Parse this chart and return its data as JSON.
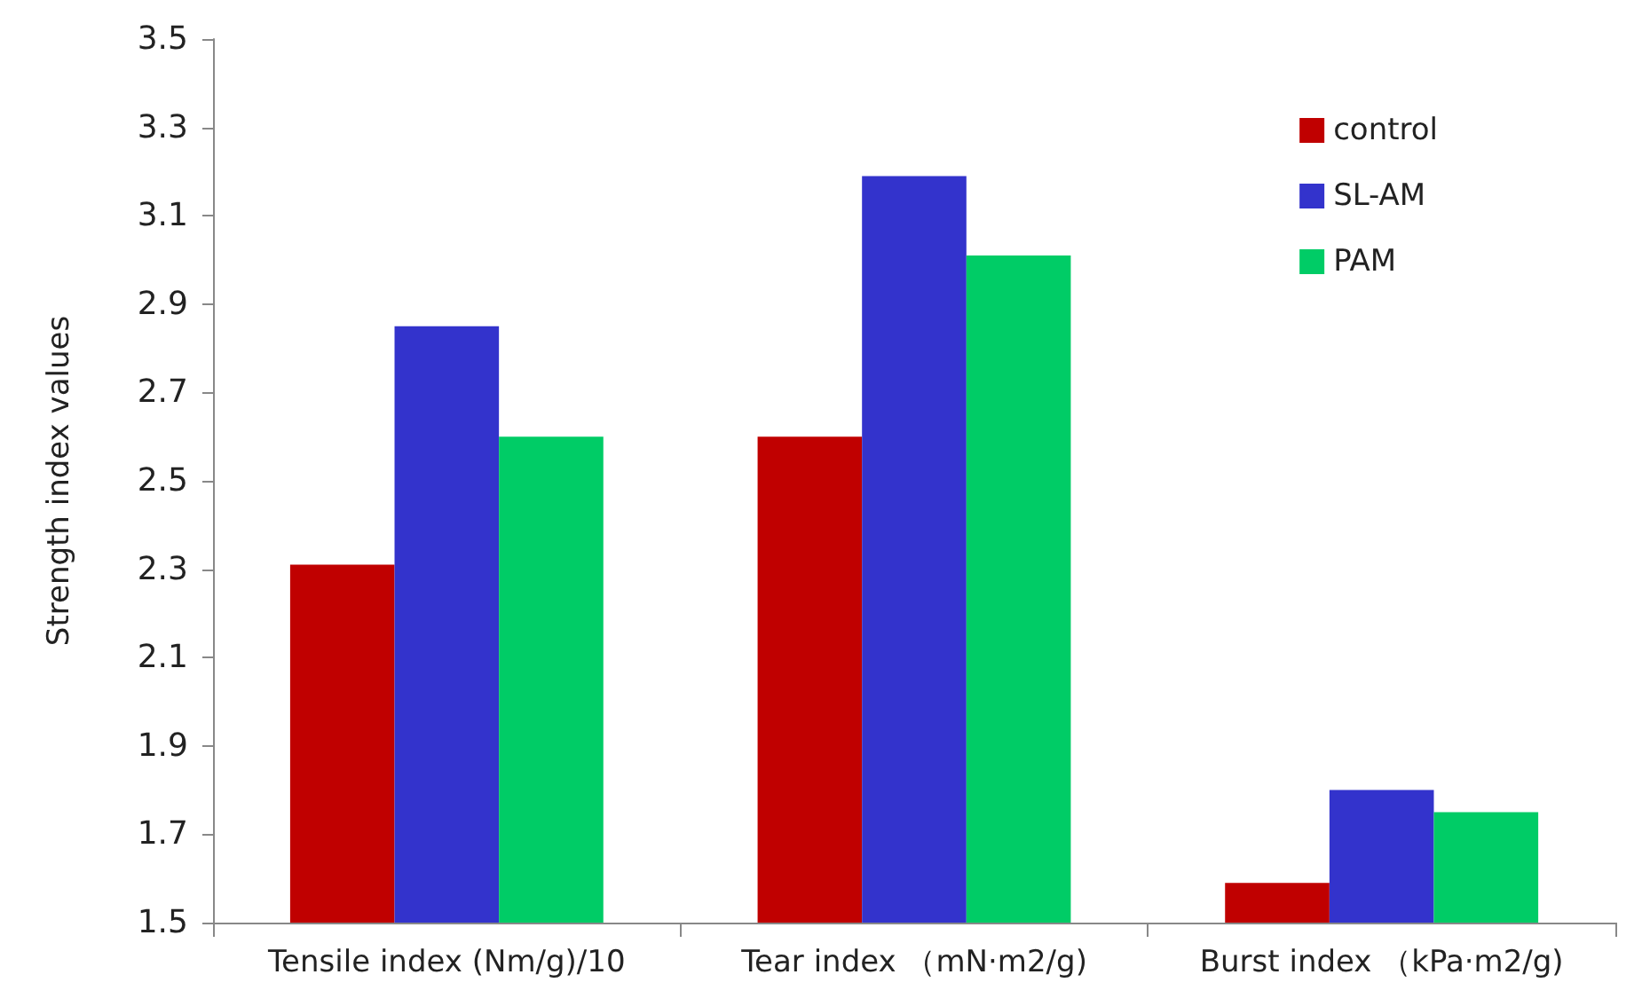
{
  "chart_data": {
    "type": "bar",
    "ylabel": "Strength index values",
    "categories": [
      "Tensile index (Nm/g)/10",
      "Tear index （mN·m2/g)",
      "Burst index （kPa·m2/g)"
    ],
    "series": [
      {
        "name": "control",
        "color": "#c00000",
        "values": [
          2.31,
          2.6,
          1.59
        ]
      },
      {
        "name": "SL-AM",
        "color": "#3333cc",
        "values": [
          2.85,
          3.19,
          1.8
        ]
      },
      {
        "name": "PAM",
        "color": "#00cc66",
        "values": [
          2.6,
          3.01,
          1.75
        ]
      }
    ],
    "ylim": [
      1.5,
      3.5
    ],
    "yticks": [
      1.5,
      1.7,
      1.9,
      2.1,
      2.3,
      2.5,
      2.7,
      2.9,
      3.1,
      3.3,
      3.5
    ],
    "grid": false,
    "legend": "top right"
  }
}
